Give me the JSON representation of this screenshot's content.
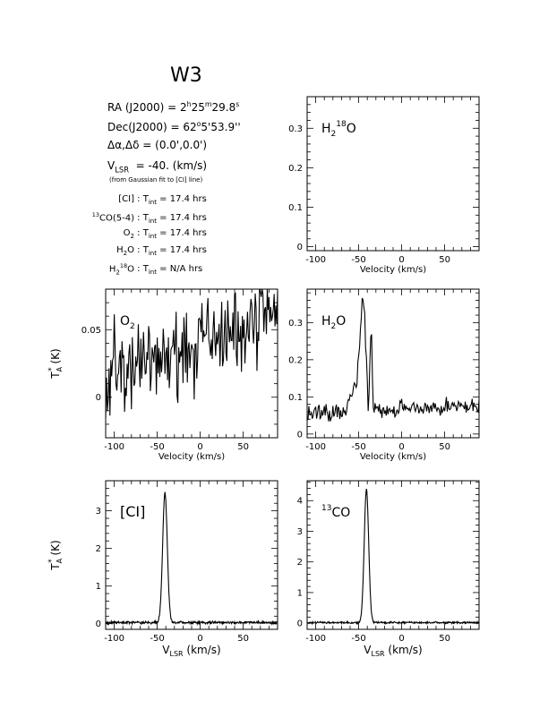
{
  "header": {
    "title": "W3",
    "ra": {
      "label": "RA (J2000) = ",
      "h": "2",
      "h_sup": "h",
      "m": "25",
      "m_sup": "m",
      "s": "29.8",
      "s_sup": "s"
    },
    "dec": {
      "label": "Dec(J2000) = ",
      "deg": "62",
      "deg_sup": "o",
      "rest": "5'53.9''"
    },
    "offset": "Δα,Δδ = (0.0',0.0')",
    "vlsr": {
      "label": "V",
      "sub": "LSR",
      "value": "= -40. (km/s)"
    },
    "vlsr_note": "(from Gaussian fit to [CI] line)",
    "integrations": [
      {
        "pre": "",
        "species_sup": "",
        "species": "[CI]",
        "species_sub": "",
        "species_sup2": "",
        "species_tail": "",
        "text": "17.4 hrs"
      },
      {
        "pre": "13",
        "species_sup": "",
        "species": "CO(5-4)",
        "species_sub": "",
        "species_sup2": "",
        "species_tail": "",
        "text": "17.4 hrs"
      },
      {
        "pre": "",
        "species_sup": "",
        "species": "O",
        "species_sub": "2",
        "species_sup2": "",
        "species_tail": "",
        "text": "17.4 hrs"
      },
      {
        "pre": "",
        "species_sup": "",
        "species": "H",
        "species_sub": "2",
        "species_sup2": "",
        "species_tail": "O",
        "text": "17.4 hrs"
      },
      {
        "pre": "",
        "species_sup": "",
        "species": "H",
        "species_sub": "2",
        "species_sup2": "18",
        "species_tail": "O",
        "text": "N/A hrs"
      }
    ],
    "tint_label": "T",
    "tint_sub": "int",
    "tint_eq": " = "
  },
  "chart_data": [
    {
      "type": "line",
      "id": "h218o",
      "label_main": "H",
      "label_sub": "2",
      "label_sup": "18",
      "label_tail": "O",
      "xlim": [
        -110,
        90
      ],
      "ylim": [
        -0.01,
        0.38
      ],
      "xticks": [
        -100,
        -50,
        0,
        50
      ],
      "yticks": [
        0,
        0.1,
        0.2,
        0.3
      ],
      "yticklabels": [
        "0",
        "0.1",
        "0.2",
        "0.3"
      ],
      "xlabel": "Velocity (km/s)",
      "ylabel": "",
      "model": null,
      "points": []
    },
    {
      "type": "line",
      "id": "o2",
      "label_main": "O",
      "label_sub": "2",
      "label_sup": "",
      "label_tail": "",
      "xlim": [
        -110,
        90
      ],
      "ylim": [
        -0.03,
        0.08
      ],
      "xticks": [
        -100,
        -50,
        0,
        50
      ],
      "yticks": [
        0,
        0.05
      ],
      "yticklabels": [
        "0",
        "0.05"
      ],
      "xlabel": "Velocity (km/s)",
      "ylabel": "T",
      "model": {
        "baseline": [
          0.012,
          0.00025
        ],
        "noise": 0.017,
        "peaks": [
          [
            -100,
            0.045,
            1.2
          ]
        ],
        "step": 1,
        "seed": 7
      },
      "points": []
    },
    {
      "type": "line",
      "id": "h2o",
      "label_main": "H",
      "label_sub": "2",
      "label_sup": "",
      "label_tail": "O",
      "xlim": [
        -110,
        90
      ],
      "ylim": [
        -0.01,
        0.39
      ],
      "xticks": [
        -100,
        -50,
        0,
        50
      ],
      "yticks": [
        0,
        0.1,
        0.2,
        0.3
      ],
      "yticklabels": [
        "0",
        "0.1",
        "0.2",
        "0.3"
      ],
      "xlabel": "Velocity (km/s)",
      "ylabel": "",
      "model": {
        "baseline": [
          0.055,
          0.0001
        ],
        "noise": 0.012,
        "peaks": [
          [
            -48,
            0.1,
            8
          ],
          [
            -45,
            0.21,
            2.8
          ],
          [
            -39,
            -0.09,
            0.6
          ],
          [
            -35.5,
            0.17,
            1.2
          ]
        ],
        "step": 1,
        "seed": 11
      },
      "points": []
    },
    {
      "type": "line",
      "id": "ci",
      "label_main": "[CI]",
      "label_sub": "",
      "label_sup": "",
      "label_tail": "",
      "xlim": [
        -110,
        90
      ],
      "ylim": [
        -0.15,
        3.8
      ],
      "xticks": [
        -100,
        -50,
        0,
        50
      ],
      "yticks": [
        0,
        1,
        2,
        3
      ],
      "yticklabels": [
        "0",
        "1",
        "2",
        "3"
      ],
      "xlabel": "V",
      "xlabel_sub": "LSR",
      "xlabel_tail": " (km/s)",
      "ylabel": "T",
      "model": {
        "baseline": [
          0.03,
          0
        ],
        "noise": 0.018,
        "peaks": [
          [
            -41,
            3.45,
            2.7
          ]
        ],
        "step": 0.5,
        "seed": 3
      },
      "points": []
    },
    {
      "type": "line",
      "id": "co13",
      "label_main": "CO",
      "label_pre": "13",
      "label_sub": "",
      "label_sup": "",
      "label_tail": "",
      "xlim": [
        -110,
        90
      ],
      "ylim": [
        -0.2,
        4.65
      ],
      "xticks": [
        -100,
        -50,
        0,
        50
      ],
      "yticks": [
        0,
        1,
        2,
        3,
        4
      ],
      "yticklabels": [
        "0",
        "1",
        "2",
        "3",
        "4"
      ],
      "xlabel": "V",
      "xlabel_sub": "LSR",
      "xlabel_tail": " (km/s)",
      "ylabel": "",
      "model": {
        "baseline": [
          0.02,
          0
        ],
        "noise": 0.015,
        "peaks": [
          [
            -41,
            4.35,
            2.6
          ]
        ],
        "step": 0.5,
        "seed": 5
      },
      "points": []
    }
  ],
  "ylabel_text": {
    "main": "T",
    "sub": "A",
    "sup": "*",
    "unit": " (K)"
  }
}
